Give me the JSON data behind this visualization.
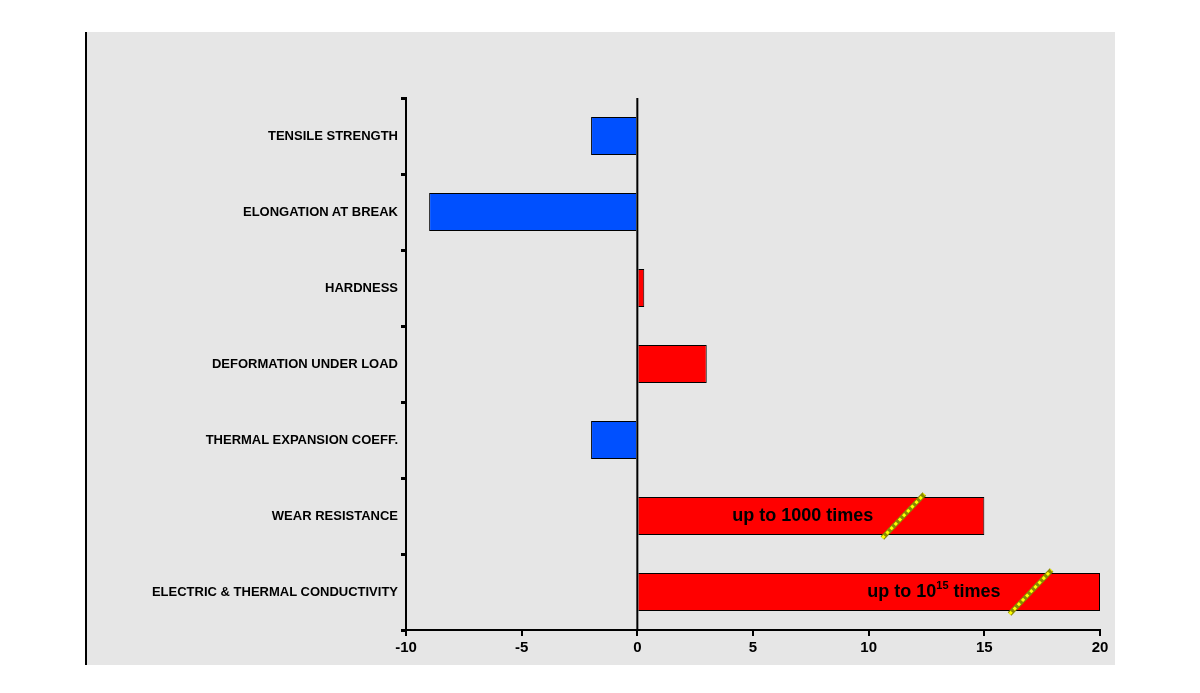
{
  "chart_data": {
    "type": "bar",
    "orientation": "horizontal",
    "categories": [
      "TENSILE STRENGTH",
      "ELONGATION AT BREAK",
      "HARDNESS",
      "DEFORMATION UNDER LOAD",
      "THERMAL EXPANSION COEFF.",
      "WEAR RESISTANCE",
      "ELECTRIC & THERMAL CONDUCTIVITY"
    ],
    "values": [
      -2,
      -9,
      0.3,
      3,
      -2,
      15,
      20
    ],
    "colors": [
      "#0050ff",
      "#0050ff",
      "#ff0000",
      "#ff0000",
      "#0050ff",
      "#ff0000",
      "#ff0000"
    ],
    "xlim": [
      -10,
      20
    ],
    "xticks": [
      -10,
      -5,
      0,
      5,
      10,
      15,
      20
    ],
    "grid": false,
    "legend": false,
    "ref_lines": [
      {
        "axis": "x",
        "value": 0,
        "color": "#000000"
      }
    ],
    "annotations": [
      {
        "text": "up to 1000 times",
        "x": 11.5,
        "y": "WEAR RESISTANCE"
      },
      {
        "text": "up to 10$^{15}$ times",
        "x": 17,
        "y": "ELECTRIC & THERMAL CONDUCTIVITY"
      }
    ]
  }
}
